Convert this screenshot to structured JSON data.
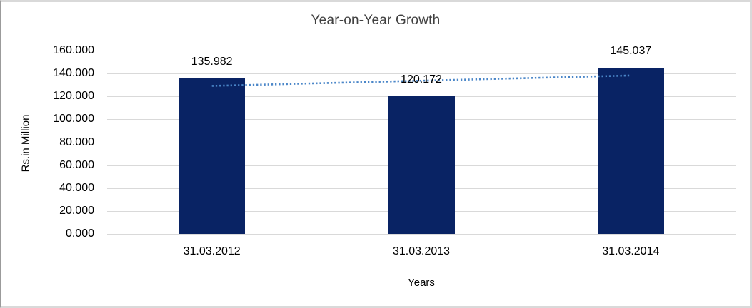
{
  "window": {
    "background": "#ffffff",
    "frame_border_color": "#d9d9d9",
    "frame_left_edge_color": "#9b9b9b"
  },
  "chart_data": {
    "type": "bar",
    "title": "Year-on-Year Growth",
    "xlabel": "Years",
    "ylabel": "Rs.in Million",
    "categories": [
      "31.03.2012",
      "31.03.2013",
      "31.03.2014"
    ],
    "values": [
      135.982,
      120.172,
      145.037
    ],
    "value_labels": [
      "135.982",
      "120.172",
      "145.037"
    ],
    "y_ticks": [
      {
        "value": 160,
        "label": "160.000"
      },
      {
        "value": 140,
        "label": "140.000"
      },
      {
        "value": 120,
        "label": "120.000"
      },
      {
        "value": 100,
        "label": "100.000"
      },
      {
        "value": 80,
        "label": "80.000"
      },
      {
        "value": 60,
        "label": "60.000"
      },
      {
        "value": 40,
        "label": "40.000"
      },
      {
        "value": 20,
        "label": "20.000"
      },
      {
        "value": 0,
        "label": "0.000"
      }
    ],
    "ylim": [
      0,
      160
    ],
    "grid": true,
    "legend": false,
    "trendline": {
      "type": "linear",
      "style": "dotted",
      "color": "#4a86c8"
    },
    "colors": {
      "bar": "#092364",
      "gridline": "#d9d9d9",
      "text": "#000000",
      "title_text": "#404040"
    }
  }
}
